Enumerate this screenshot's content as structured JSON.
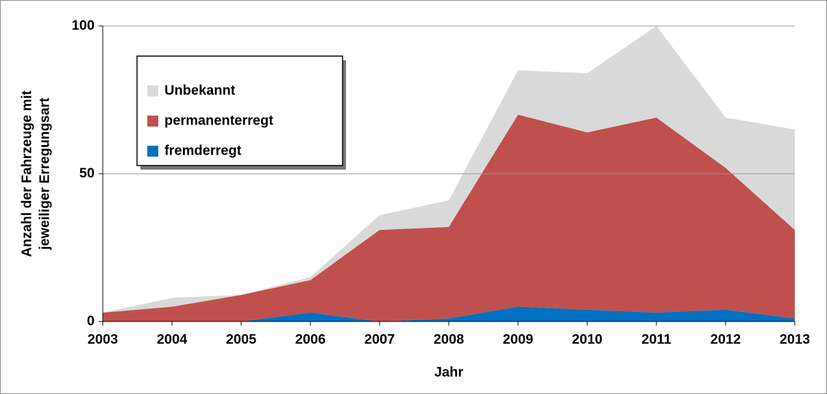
{
  "chart_data": {
    "type": "stacked_area",
    "xlabel": "Jahr",
    "ylabel": [
      "Anzahl der Fahrzeuge mit",
      "jeweiliger Erregungsart"
    ],
    "categories": [
      "2003",
      "2004",
      "2005",
      "2006",
      "2007",
      "2008",
      "2009",
      "2010",
      "2011",
      "2012",
      "2013"
    ],
    "series": [
      {
        "name": "Unbekannt",
        "color": "#d9d9d9",
        "values": [
          0,
          3,
          0,
          1,
          5,
          9,
          15,
          20,
          31,
          17,
          34
        ]
      },
      {
        "name": "permanenterregt",
        "color": "#c0504d",
        "values": [
          3,
          5,
          9,
          11,
          31,
          31,
          65,
          60,
          66,
          48,
          30
        ]
      },
      {
        "name": "fremderregt",
        "color": "#0070c0",
        "values": [
          0,
          0,
          0,
          3,
          0,
          1,
          5,
          4,
          3,
          4,
          1
        ]
      }
    ],
    "ylim": [
      0,
      100
    ],
    "yticks": [
      0,
      50,
      100
    ],
    "grid": true,
    "legend": "upper left"
  }
}
